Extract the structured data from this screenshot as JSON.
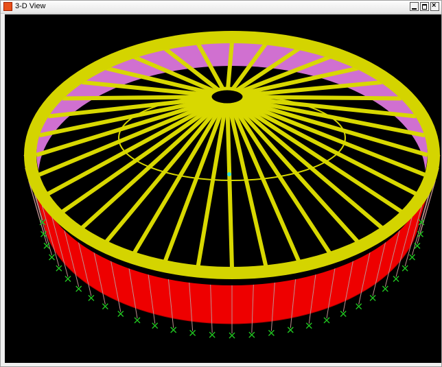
{
  "window": {
    "title": "3-D View"
  }
}
